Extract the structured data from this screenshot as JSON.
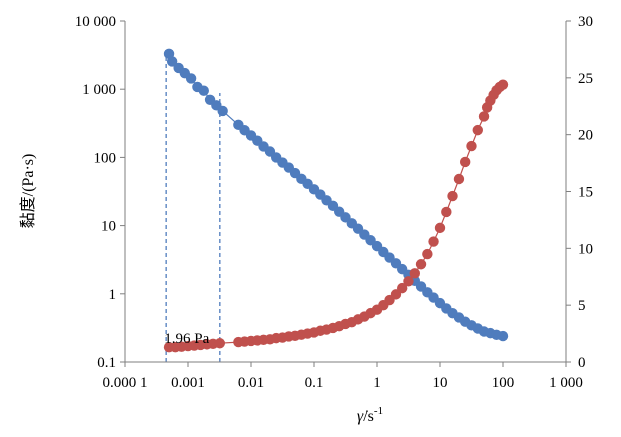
{
  "chart_data": {
    "type": "scatter",
    "x_scale": "log",
    "y_scale": "log",
    "xlim": [
      0.0001,
      1000
    ],
    "ylim": [
      0.1,
      10000
    ],
    "y2lim": [
      0,
      30
    ],
    "grid": false,
    "legend": "none",
    "xlabel_main": "γ̇",
    "xlabel_unit": "/s",
    "xlabel_exp": "-1",
    "ylabel": "黏度/(Pa·s)",
    "x_ticks": [
      {
        "v": 0.0001,
        "label": "0.000 1"
      },
      {
        "v": 0.001,
        "label": "0.001"
      },
      {
        "v": 0.01,
        "label": "0.01"
      },
      {
        "v": 0.1,
        "label": "0.1"
      },
      {
        "v": 1,
        "label": "1"
      },
      {
        "v": 10,
        "label": "10"
      },
      {
        "v": 100,
        "label": "100"
      },
      {
        "v": 1000,
        "label": "1 000"
      }
    ],
    "y_ticks": [
      {
        "v": 0.1,
        "label": "0.1"
      },
      {
        "v": 1,
        "label": "1"
      },
      {
        "v": 10,
        "label": "10"
      },
      {
        "v": 100,
        "label": "100"
      },
      {
        "v": 1000,
        "label": "1 000"
      },
      {
        "v": 10000,
        "label": "10 000"
      }
    ],
    "y2_ticks": [
      {
        "v": 0,
        "label": "0"
      },
      {
        "v": 5,
        "label": "5"
      },
      {
        "v": 10,
        "label": "10"
      },
      {
        "v": 15,
        "label": "15"
      },
      {
        "v": 20,
        "label": "20"
      },
      {
        "v": 25,
        "label": "25"
      },
      {
        "v": 30,
        "label": "30"
      }
    ],
    "series": [
      {
        "axis": "left",
        "color": "#4f7cbd",
        "x": [
          0.0005,
          0.00056,
          0.00071,
          0.00089,
          0.00112,
          0.00141,
          0.00178,
          0.00224,
          0.00282,
          0.00355,
          0.0063,
          0.0079,
          0.01,
          0.0126,
          0.0158,
          0.02,
          0.0251,
          0.0316,
          0.0398,
          0.05,
          0.063,
          0.079,
          0.1,
          0.126,
          0.158,
          0.2,
          0.251,
          0.316,
          0.398,
          0.5,
          0.63,
          0.79,
          1,
          1.26,
          1.58,
          2,
          2.51,
          3.16,
          3.98,
          5,
          6.3,
          7.9,
          10,
          12.6,
          15.8,
          20,
          25.1,
          31.6,
          39.8,
          50,
          63,
          79,
          100
        ],
        "y": [
          3300,
          2550,
          2050,
          1720,
          1440,
          1080,
          950,
          700,
          580,
          480,
          300,
          250,
          210,
          176,
          145,
          122,
          100,
          84,
          71,
          59,
          48.5,
          41,
          34,
          28.5,
          23.5,
          19.5,
          16,
          13.2,
          10.8,
          9,
          7.4,
          6.1,
          5,
          4.1,
          3.4,
          2.8,
          2.3,
          1.9,
          1.55,
          1.28,
          1.05,
          0.88,
          0.73,
          0.61,
          0.52,
          0.45,
          0.39,
          0.345,
          0.31,
          0.28,
          0.265,
          0.25,
          0.24
        ]
      },
      {
        "axis": "right",
        "color": "#c0504d",
        "x": [
          0.0005,
          0.00063,
          0.00079,
          0.001,
          0.00126,
          0.00158,
          0.002,
          0.0025,
          0.0032,
          0.0063,
          0.0079,
          0.01,
          0.0126,
          0.0158,
          0.02,
          0.0251,
          0.0316,
          0.0398,
          0.05,
          0.063,
          0.079,
          0.1,
          0.126,
          0.158,
          0.2,
          0.251,
          0.316,
          0.398,
          0.5,
          0.63,
          0.79,
          1,
          1.26,
          1.58,
          2,
          2.51,
          3.16,
          3.98,
          5,
          6.3,
          7.9,
          10,
          12.6,
          15.8,
          20,
          25.1,
          31.6,
          39.8,
          50,
          56,
          63,
          71,
          79,
          89,
          100
        ],
        "y": [
          1.3,
          1.3,
          1.35,
          1.4,
          1.45,
          1.5,
          1.55,
          1.6,
          1.65,
          1.75,
          1.8,
          1.85,
          1.9,
          1.95,
          2.0,
          2.1,
          2.15,
          2.25,
          2.3,
          2.4,
          2.5,
          2.6,
          2.75,
          2.85,
          3.0,
          3.15,
          3.35,
          3.5,
          3.75,
          4.0,
          4.3,
          4.6,
          5.0,
          5.45,
          5.95,
          6.5,
          7.1,
          7.8,
          8.6,
          9.5,
          10.6,
          11.8,
          13.2,
          14.6,
          16.1,
          17.6,
          19.0,
          20.4,
          21.6,
          22.4,
          23.0,
          23.5,
          23.9,
          24.2,
          24.4
        ]
      }
    ],
    "annotations": [
      {
        "text": "1.96 Pa",
        "x": 0.00042,
        "y": 0.19
      },
      {
        "type": "vline",
        "x": 0.00045,
        "y_from": 0.1,
        "y_to": 3300
      },
      {
        "type": "vline",
        "x": 0.0032,
        "y_from": 0.1,
        "y_to": 880
      }
    ]
  }
}
